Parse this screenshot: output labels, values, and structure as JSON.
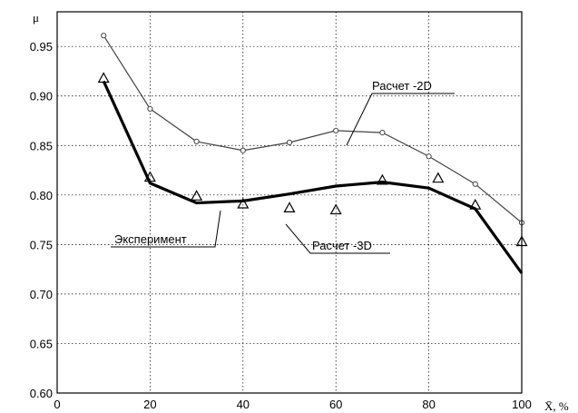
{
  "chart_data": {
    "type": "line",
    "ylabel": "μ",
    "xlabel": "X̄, %",
    "xlim": [
      0,
      100
    ],
    "ylim": [
      0.6,
      0.985
    ],
    "xticks": [
      0,
      20,
      40,
      60,
      80,
      100
    ],
    "yticks": [
      0.6,
      0.65,
      0.7,
      0.75,
      0.8,
      0.85,
      0.9,
      0.95
    ],
    "ytick_labels": [
      "0.60",
      "0.65",
      "0.70",
      "0.75",
      "0.80",
      "0.85",
      "0.90",
      "0.95"
    ],
    "grid": true,
    "series": [
      {
        "name": "Расчет -2D",
        "style": "thin line with circle markers",
        "color": "#444444",
        "x": [
          10,
          20,
          30,
          40,
          50,
          60,
          70,
          80,
          90,
          100
        ],
        "y": [
          0.961,
          0.887,
          0.854,
          0.845,
          0.853,
          0.865,
          0.863,
          0.839,
          0.811,
          0.772
        ]
      },
      {
        "name": "Эксперимент",
        "style": "thick line",
        "color": "#000000",
        "x": [
          10,
          20,
          30,
          40,
          50,
          60,
          70,
          80,
          90,
          100
        ],
        "y": [
          0.915,
          0.812,
          0.792,
          0.794,
          0.801,
          0.809,
          0.813,
          0.807,
          0.786,
          0.721
        ]
      },
      {
        "name": "Расчет -3D",
        "style": "triangle markers",
        "color": "#000000",
        "x": [
          10,
          20,
          30,
          40,
          50,
          60,
          70,
          82,
          90,
          100
        ],
        "y": [
          0.918,
          0.818,
          0.799,
          0.791,
          0.787,
          0.785,
          0.815,
          0.817,
          0.79,
          0.753
        ]
      }
    ]
  }
}
